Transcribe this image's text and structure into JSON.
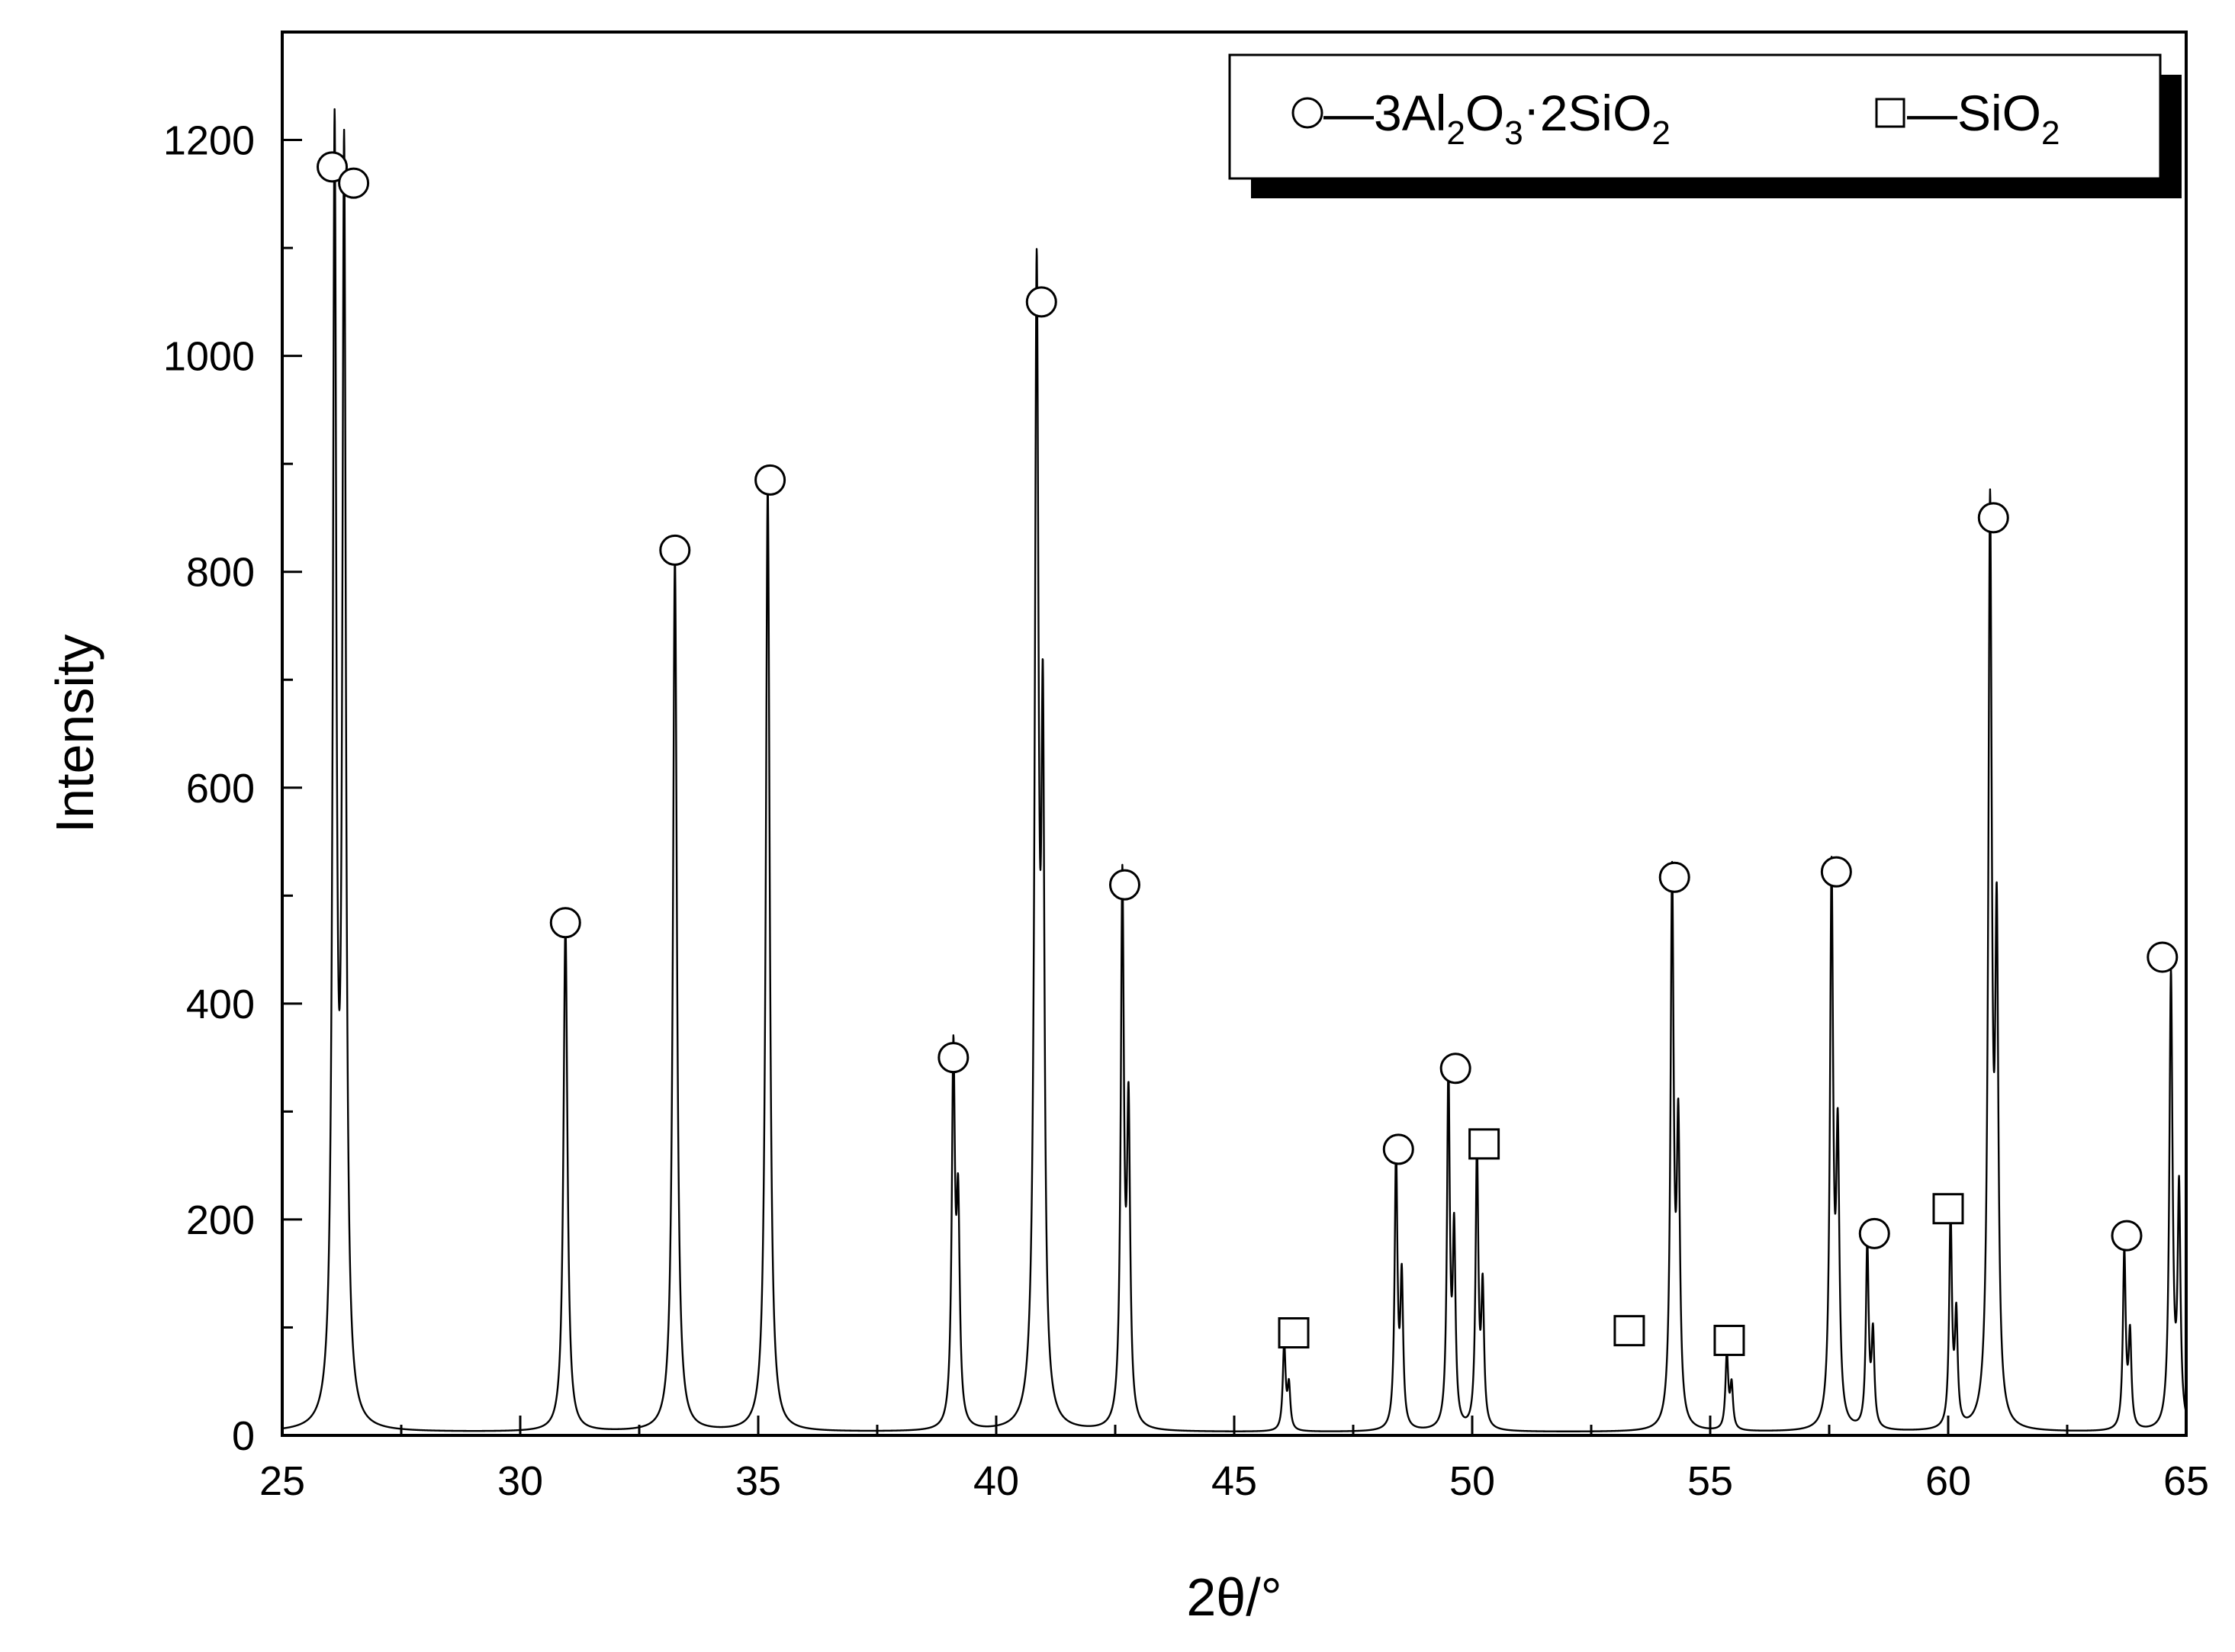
{
  "chart_data": {
    "type": "line",
    "title": "",
    "xlabel": "2θ/°",
    "ylabel": "Intensity",
    "xlim": [
      25,
      65
    ],
    "ylim": [
      0,
      1300
    ],
    "x_ticks": [
      25,
      30,
      35,
      40,
      45,
      50,
      55,
      60,
      65
    ],
    "x_minor_step": 2.5,
    "y_ticks": [
      0,
      200,
      400,
      600,
      800,
      1000,
      1200
    ],
    "y_minor_step": 100,
    "grid": false,
    "legend_placement": "top-right",
    "legend": {
      "mullite": {
        "marker": "circle",
        "prefix": "—3Al",
        "sub1": "2",
        "mid": "O",
        "sub2": "3",
        "dot": "·",
        "rest": "2SiO",
        "sub3": "2"
      },
      "silica": {
        "marker": "square",
        "prefix": "—SiO",
        "sub1": "2"
      }
    },
    "series": [
      {
        "kind": "xrd-pattern",
        "baseline": 3,
        "peaks": [
          {
            "x": 26.1,
            "y": 1170,
            "w": 0.045
          },
          {
            "x": 26.3,
            "y": 1150,
            "w": 0.045
          },
          {
            "x": 30.95,
            "y": 470,
            "w": 0.05
          },
          {
            "x": 33.25,
            "y": 810,
            "w": 0.05
          },
          {
            "x": 35.2,
            "y": 875,
            "w": 0.05
          },
          {
            "x": 39.1,
            "y": 340,
            "w": 0.04
          },
          {
            "x": 39.2,
            "y": 190,
            "w": 0.04
          },
          {
            "x": 40.85,
            "y": 1045,
            "w": 0.05
          },
          {
            "x": 40.98,
            "y": 580,
            "w": 0.04
          },
          {
            "x": 42.65,
            "y": 500,
            "w": 0.04
          },
          {
            "x": 42.78,
            "y": 280,
            "w": 0.04
          },
          {
            "x": 46.05,
            "y": 80,
            "w": 0.035
          },
          {
            "x": 46.15,
            "y": 40,
            "w": 0.035
          },
          {
            "x": 48.4,
            "y": 255,
            "w": 0.035
          },
          {
            "x": 48.52,
            "y": 135,
            "w": 0.035
          },
          {
            "x": 49.5,
            "y": 330,
            "w": 0.035
          },
          {
            "x": 49.62,
            "y": 175,
            "w": 0.035
          },
          {
            "x": 50.1,
            "y": 258,
            "w": 0.035
          },
          {
            "x": 50.22,
            "y": 125,
            "w": 0.035
          },
          {
            "x": 54.2,
            "y": 505,
            "w": 0.04
          },
          {
            "x": 54.33,
            "y": 265,
            "w": 0.04
          },
          {
            "x": 55.35,
            "y": 70,
            "w": 0.035
          },
          {
            "x": 55.45,
            "y": 40,
            "w": 0.035
          },
          {
            "x": 57.55,
            "y": 510,
            "w": 0.04
          },
          {
            "x": 57.68,
            "y": 255,
            "w": 0.04
          },
          {
            "x": 58.3,
            "y": 170,
            "w": 0.035
          },
          {
            "x": 58.42,
            "y": 85,
            "w": 0.035
          },
          {
            "x": 60.05,
            "y": 195,
            "w": 0.035
          },
          {
            "x": 60.17,
            "y": 100,
            "w": 0.035
          },
          {
            "x": 60.88,
            "y": 840,
            "w": 0.045
          },
          {
            "x": 61.02,
            "y": 430,
            "w": 0.04
          },
          {
            "x": 63.7,
            "y": 165,
            "w": 0.035
          },
          {
            "x": 63.82,
            "y": 85,
            "w": 0.035
          },
          {
            "x": 64.68,
            "y": 420,
            "w": 0.04
          },
          {
            "x": 64.85,
            "y": 215,
            "w": 0.035
          }
        ]
      }
    ],
    "peak_markers": [
      {
        "phase": "mullite",
        "x": 26.05,
        "y": 1175
      },
      {
        "phase": "mullite",
        "x": 26.5,
        "y": 1160
      },
      {
        "phase": "mullite",
        "x": 30.95,
        "y": 475
      },
      {
        "phase": "mullite",
        "x": 33.25,
        "y": 820
      },
      {
        "phase": "mullite",
        "x": 35.25,
        "y": 885
      },
      {
        "phase": "mullite",
        "x": 39.1,
        "y": 350
      },
      {
        "phase": "mullite",
        "x": 40.95,
        "y": 1050
      },
      {
        "phase": "mullite",
        "x": 42.7,
        "y": 510
      },
      {
        "phase": "silica",
        "x": 46.25,
        "y": 95
      },
      {
        "phase": "mullite",
        "x": 48.45,
        "y": 265
      },
      {
        "phase": "mullite",
        "x": 49.65,
        "y": 340
      },
      {
        "phase": "silica",
        "x": 50.25,
        "y": 270
      },
      {
        "phase": "silica",
        "x": 53.3,
        "y": 97
      },
      {
        "phase": "mullite",
        "x": 54.25,
        "y": 517
      },
      {
        "phase": "silica",
        "x": 55.4,
        "y": 88
      },
      {
        "phase": "mullite",
        "x": 57.65,
        "y": 522
      },
      {
        "phase": "mullite",
        "x": 58.45,
        "y": 187
      },
      {
        "phase": "silica",
        "x": 60.0,
        "y": 210
      },
      {
        "phase": "mullite",
        "x": 60.95,
        "y": 850
      },
      {
        "phase": "mullite",
        "x": 63.75,
        "y": 185
      },
      {
        "phase": "mullite",
        "x": 64.5,
        "y": 443
      }
    ]
  }
}
